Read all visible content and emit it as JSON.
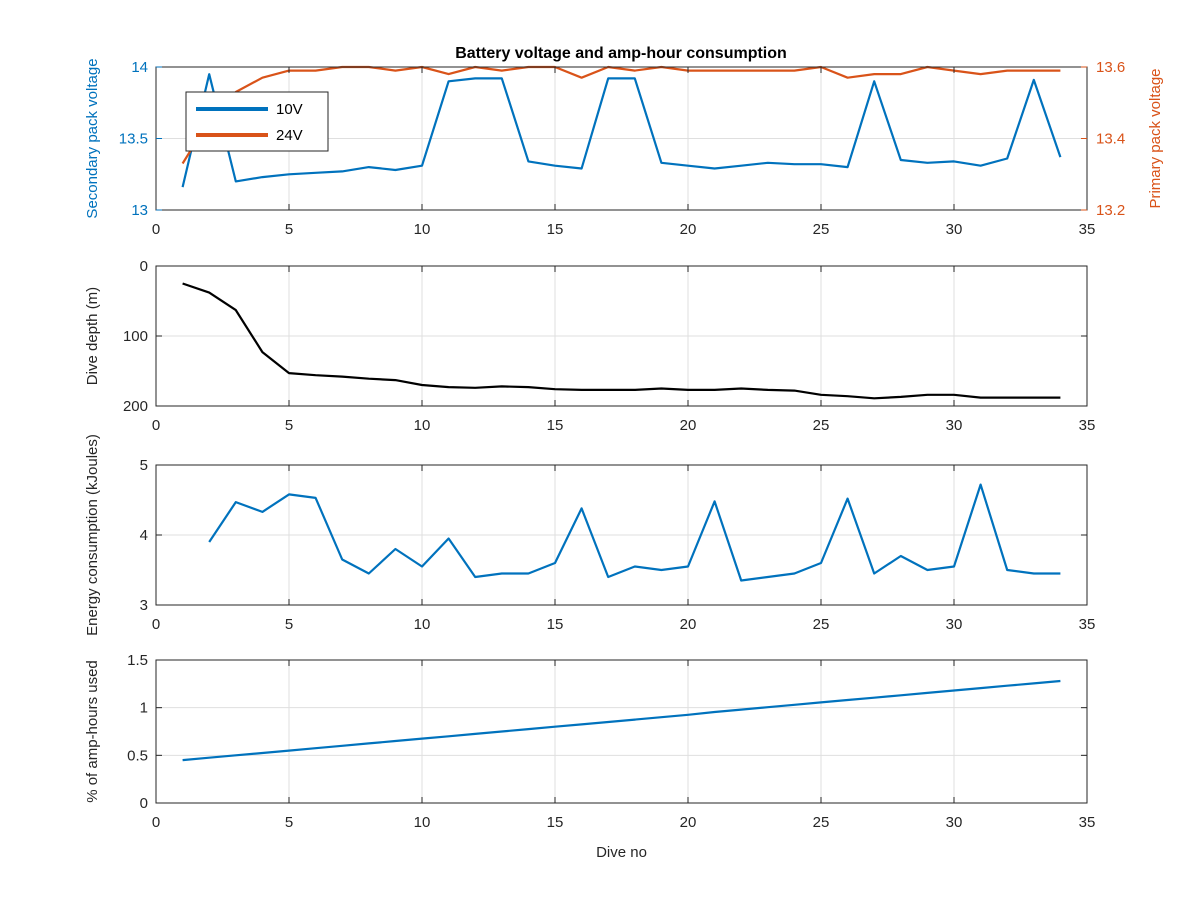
{
  "figure": {
    "title": "Battery voltage and amp-hour consumption",
    "colors": {
      "blue": "#0072BD",
      "orange": "#D95319",
      "black": "#000000",
      "grid": "#DFDFDF",
      "axis": "#262626"
    }
  },
  "chart_data": [
    {
      "type": "line",
      "title": "Battery voltage and amp-hour consumption",
      "xlabel": "",
      "xlim": [
        0,
        35
      ],
      "xticks": [
        0,
        5,
        10,
        15,
        20,
        25,
        30,
        35
      ],
      "grid": true,
      "legend_position": "top-left",
      "ylabel_left": "Secondary pack voltage",
      "ylim_left": [
        13,
        14
      ],
      "yticks_left": [
        13,
        13.5,
        14
      ],
      "ylabel_right": "Primary pack voltage",
      "ylim_right": [
        13.2,
        13.6
      ],
      "yticks_right": [
        13.2,
        13.4,
        13.6
      ],
      "series": [
        {
          "name": "10V",
          "axis": "left",
          "color": "#0072BD",
          "x": [
            1,
            2,
            3,
            4,
            5,
            6,
            7,
            8,
            9,
            10,
            11,
            12,
            13,
            14,
            15,
            16,
            17,
            18,
            19,
            20,
            21,
            22,
            23,
            24,
            25,
            26,
            27,
            28,
            29,
            30,
            31,
            32,
            33,
            34
          ],
          "values": [
            13.16,
            13.95,
            13.2,
            13.23,
            13.25,
            13.26,
            13.27,
            13.3,
            13.28,
            13.31,
            13.9,
            13.92,
            13.92,
            13.34,
            13.31,
            13.29,
            13.92,
            13.92,
            13.33,
            13.31,
            13.29,
            13.31,
            13.33,
            13.32,
            13.32,
            13.3,
            13.9,
            13.35,
            13.33,
            13.34,
            13.31,
            13.36,
            13.91,
            13.37
          ]
        },
        {
          "name": "24V",
          "axis": "right",
          "color": "#D95319",
          "x": [
            1,
            2,
            3,
            4,
            5,
            6,
            7,
            8,
            9,
            10,
            11,
            12,
            13,
            14,
            15,
            16,
            17,
            18,
            19,
            20,
            21,
            22,
            23,
            24,
            25,
            26,
            27,
            28,
            29,
            30,
            31,
            32,
            33,
            34
          ],
          "values": [
            13.33,
            13.45,
            13.53,
            13.57,
            13.59,
            13.59,
            13.6,
            13.6,
            13.59,
            13.6,
            13.58,
            13.6,
            13.59,
            13.6,
            13.6,
            13.57,
            13.6,
            13.59,
            13.6,
            13.59,
            13.59,
            13.59,
            13.59,
            13.59,
            13.6,
            13.57,
            13.58,
            13.58,
            13.6,
            13.59,
            13.58,
            13.59,
            13.59,
            13.59
          ]
        }
      ]
    },
    {
      "type": "line",
      "xlabel": "",
      "ylabel": "Dive depth (m)",
      "xlim": [
        0,
        35
      ],
      "xticks": [
        0,
        5,
        10,
        15,
        20,
        25,
        30,
        35
      ],
      "ylim": [
        0,
        200
      ],
      "yticks": [
        0,
        100,
        200
      ],
      "y_reversed": true,
      "grid": true,
      "series": [
        {
          "color": "#000000",
          "x": [
            1,
            2,
            3,
            4,
            5,
            6,
            7,
            8,
            9,
            10,
            11,
            12,
            13,
            14,
            15,
            16,
            17,
            18,
            19,
            20,
            21,
            22,
            23,
            24,
            25,
            26,
            27,
            28,
            29,
            30,
            31,
            32,
            33,
            34
          ],
          "values": [
            25,
            38,
            63,
            123,
            153,
            156,
            158,
            161,
            163,
            170,
            173,
            174,
            172,
            173,
            176,
            177,
            177,
            177,
            175,
            177,
            177,
            175,
            177,
            178,
            184,
            186,
            189,
            187,
            184,
            184,
            188,
            188,
            188,
            188
          ]
        }
      ]
    },
    {
      "type": "line",
      "xlabel": "",
      "ylabel": "Energy consumption (kJoules)",
      "xlim": [
        0,
        35
      ],
      "xticks": [
        0,
        5,
        10,
        15,
        20,
        25,
        30,
        35
      ],
      "ylim": [
        3,
        5
      ],
      "yticks": [
        3,
        4,
        5
      ],
      "grid": true,
      "series": [
        {
          "color": "#0072BD",
          "x": [
            2,
            3,
            4,
            5,
            6,
            7,
            8,
            9,
            10,
            11,
            12,
            13,
            14,
            15,
            16,
            17,
            18,
            19,
            20,
            21,
            22,
            23,
            24,
            25,
            26,
            27,
            28,
            29,
            30,
            31,
            32,
            33,
            34
          ],
          "values": [
            3.9,
            4.47,
            4.33,
            4.58,
            4.53,
            3.65,
            3.45,
            3.8,
            3.55,
            3.95,
            3.4,
            3.45,
            3.45,
            3.6,
            4.38,
            3.4,
            3.55,
            3.5,
            3.55,
            4.48,
            3.35,
            3.4,
            3.45,
            3.6,
            4.52,
            3.45,
            3.7,
            3.5,
            3.55,
            4.72,
            3.5,
            3.45,
            3.45
          ]
        }
      ]
    },
    {
      "type": "line",
      "xlabel": "Dive no",
      "ylabel": "% of amp-hours used",
      "xlim": [
        0,
        35
      ],
      "xticks": [
        0,
        5,
        10,
        15,
        20,
        25,
        30,
        35
      ],
      "ylim": [
        0,
        1.5
      ],
      "yticks": [
        0,
        0.5,
        1,
        1.5
      ],
      "grid": true,
      "series": [
        {
          "color": "#0072BD",
          "x": [
            1,
            2,
            3,
            4,
            5,
            6,
            7,
            8,
            9,
            10,
            11,
            12,
            13,
            14,
            15,
            16,
            17,
            18,
            19,
            20,
            21,
            22,
            23,
            24,
            25,
            26,
            27,
            28,
            29,
            30,
            31,
            32,
            33,
            34
          ],
          "values": [
            0.45,
            0.475,
            0.5,
            0.525,
            0.55,
            0.575,
            0.6,
            0.625,
            0.65,
            0.675,
            0.7,
            0.725,
            0.75,
            0.775,
            0.8,
            0.825,
            0.85,
            0.875,
            0.9,
            0.925,
            0.955,
            0.98,
            1.005,
            1.03,
            1.055,
            1.08,
            1.105,
            1.13,
            1.155,
            1.18,
            1.205,
            1.23,
            1.255,
            1.28
          ]
        }
      ]
    }
  ]
}
